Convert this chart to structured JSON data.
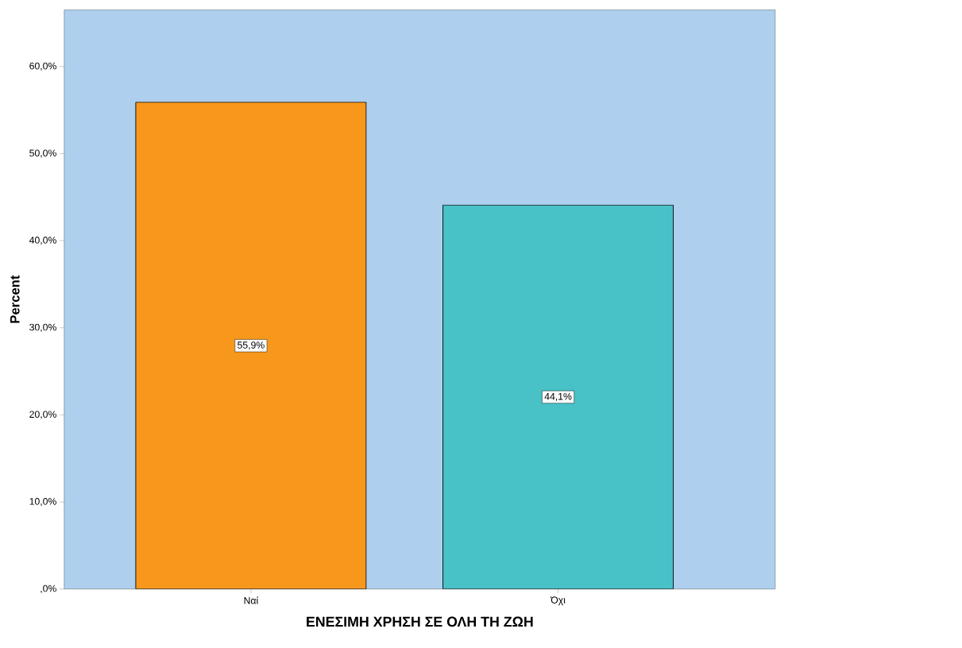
{
  "chart_data": {
    "type": "bar",
    "xlabel": "ΕΝΕΣΙΜΗ ΧΡΗΣΗ ΣΕ ΟΛΗ ΤΗ ΖΩΗ",
    "ylabel": "Percent",
    "categories": [
      "Ναί",
      "Όχι"
    ],
    "values": [
      55.9,
      44.1
    ],
    "colors": [
      "#f7981d",
      "#48c1c7"
    ],
    "value_labels": [
      "55,9%",
      "44,1%"
    ],
    "ylim": [
      0,
      66.5
    ],
    "yticks": [
      {
        "value": 0,
        "label": ",0%"
      },
      {
        "value": 10,
        "label": "10,0%"
      },
      {
        "value": 20,
        "label": "20,0%"
      },
      {
        "value": 30,
        "label": "30,0%"
      },
      {
        "value": 40,
        "label": "40,0%"
      },
      {
        "value": 50,
        "label": "50,0%"
      },
      {
        "value": 60,
        "label": "60,0%"
      }
    ]
  }
}
